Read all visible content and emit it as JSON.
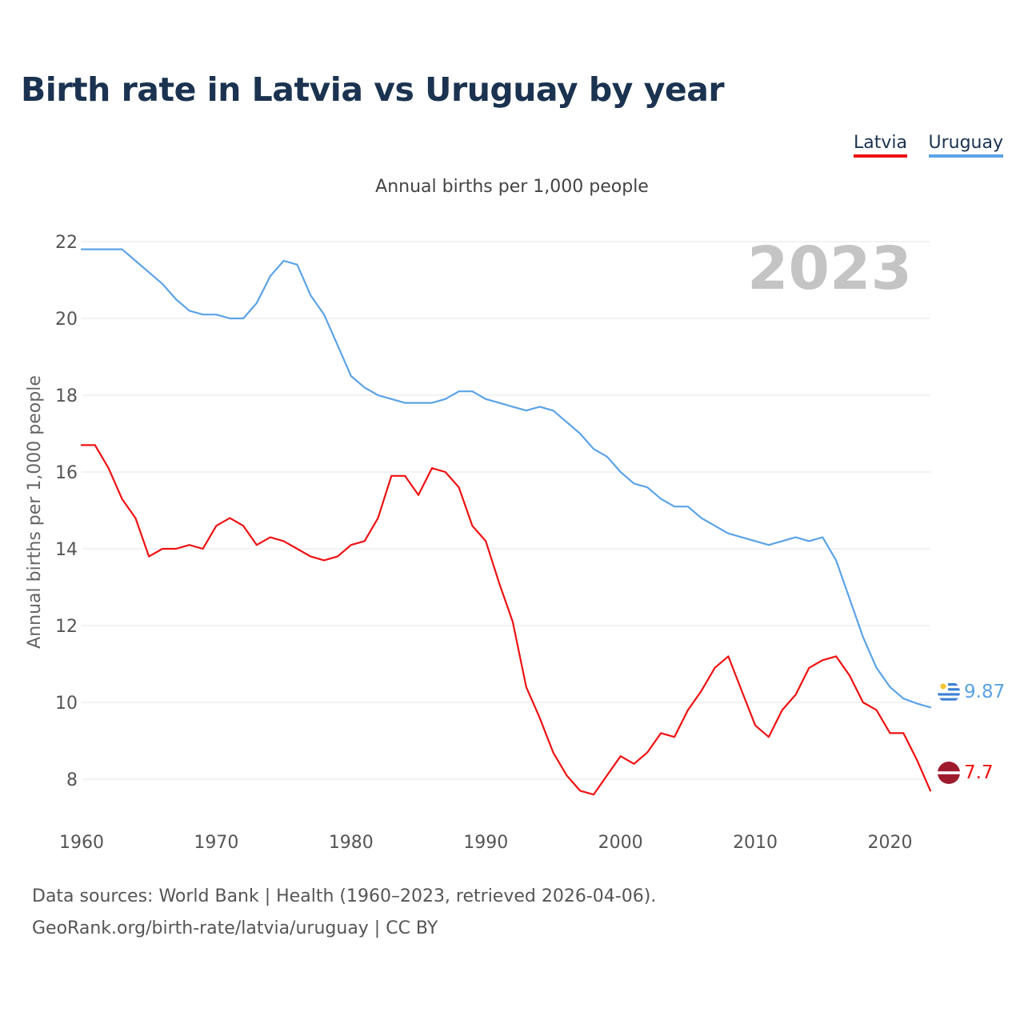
{
  "title": "Birth rate in Latvia vs Uruguay by year",
  "legend": {
    "latvia": "Latvia",
    "uruguay": "Uruguay"
  },
  "footer": {
    "line1": "Data sources: World Bank | Health (1960–2023, retrieved 2026-04-06).",
    "line2": "GeoRank.org/birth-rate/latvia/uruguay | CC BY"
  },
  "chart_data": {
    "type": "line",
    "title": "Annual births per 1,000 people",
    "ylabel": "Annual births per 1,000 people",
    "xlabel": "",
    "year_label": "2023",
    "xlim": [
      1960,
      2023
    ],
    "ylim": [
      7,
      22.5
    ],
    "x_ticks": [
      1960,
      1970,
      1980,
      1990,
      2000,
      2010,
      2020
    ],
    "y_ticks": [
      8,
      10,
      12,
      14,
      16,
      18,
      20,
      22
    ],
    "grid": true,
    "colors": {
      "latvia": "#ee1111",
      "uruguay": "#5ba3e6",
      "grid": "#e6e6e6",
      "year": "#c4c4c4"
    },
    "x": [
      1960,
      1961,
      1962,
      1963,
      1964,
      1965,
      1966,
      1967,
      1968,
      1969,
      1970,
      1971,
      1972,
      1973,
      1974,
      1975,
      1976,
      1977,
      1978,
      1979,
      1980,
      1981,
      1982,
      1983,
      1984,
      1985,
      1986,
      1987,
      1988,
      1989,
      1990,
      1991,
      1992,
      1993,
      1994,
      1995,
      1996,
      1997,
      1998,
      1999,
      2000,
      2001,
      2002,
      2003,
      2004,
      2005,
      2006,
      2007,
      2008,
      2009,
      2010,
      2011,
      2012,
      2013,
      2014,
      2015,
      2016,
      2017,
      2018,
      2019,
      2020,
      2021,
      2022,
      2023
    ],
    "series": [
      {
        "key": "latvia",
        "name": "Latvia",
        "end_label": "7.7",
        "values": [
          16.7,
          16.7,
          16.1,
          15.3,
          14.8,
          13.8,
          14.0,
          14.0,
          14.1,
          14.0,
          14.6,
          14.8,
          14.6,
          14.1,
          14.3,
          14.2,
          14.0,
          13.8,
          13.7,
          13.8,
          14.1,
          14.2,
          14.8,
          15.9,
          15.9,
          15.4,
          16.1,
          16.0,
          15.6,
          14.6,
          14.2,
          13.1,
          12.1,
          10.4,
          9.6,
          8.7,
          8.1,
          7.7,
          7.6,
          8.1,
          8.6,
          8.4,
          8.7,
          9.2,
          9.1,
          9.8,
          10.3,
          10.9,
          11.2,
          10.3,
          9.4,
          9.1,
          9.8,
          10.2,
          10.9,
          11.1,
          11.2,
          10.7,
          10.0,
          9.8,
          9.2,
          9.2,
          8.5,
          7.7
        ]
      },
      {
        "key": "uruguay",
        "name": "Uruguay",
        "end_label": "9.87",
        "values": [
          21.8,
          21.8,
          21.8,
          21.8,
          21.5,
          21.2,
          20.9,
          20.5,
          20.2,
          20.1,
          20.1,
          20.0,
          20.0,
          20.4,
          21.1,
          21.5,
          21.4,
          20.6,
          20.1,
          19.3,
          18.5,
          18.2,
          18.0,
          17.9,
          17.8,
          17.8,
          17.8,
          17.9,
          18.1,
          18.1,
          17.9,
          17.8,
          17.7,
          17.6,
          17.7,
          17.6,
          17.3,
          17.0,
          16.6,
          16.4,
          16.0,
          15.7,
          15.6,
          15.3,
          15.1,
          15.1,
          14.8,
          14.6,
          14.4,
          14.3,
          14.2,
          14.1,
          14.2,
          14.3,
          14.2,
          14.3,
          13.7,
          12.7,
          11.7,
          10.9,
          10.4,
          10.1,
          9.97,
          9.87
        ]
      }
    ]
  }
}
